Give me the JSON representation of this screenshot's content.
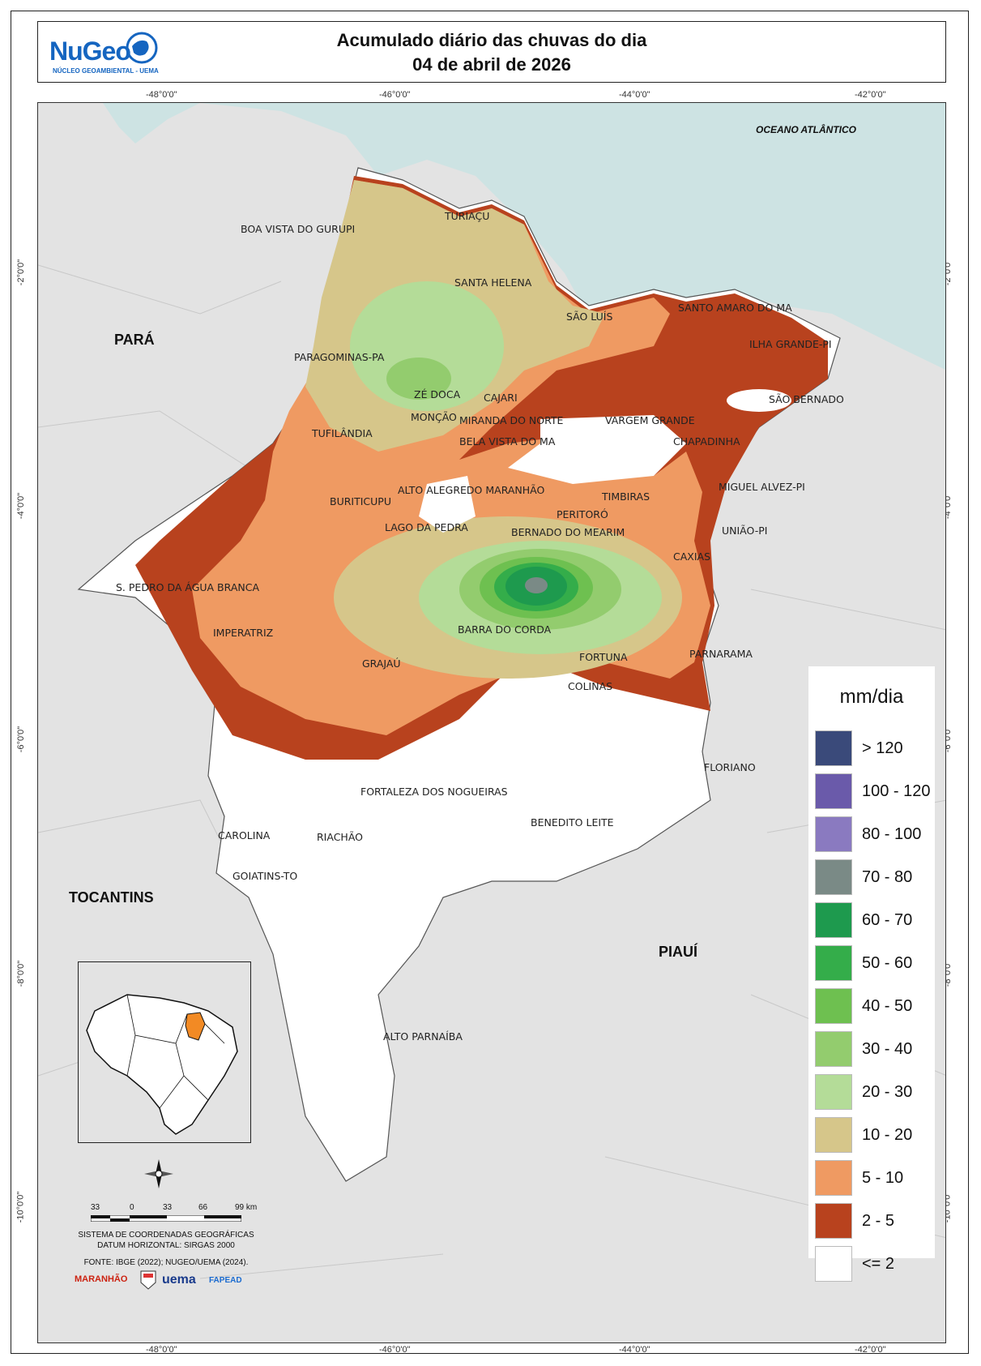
{
  "header": {
    "title_line1": "Acumulado diário das chuvas do dia",
    "title_line2": "04 de abril de 2026",
    "logo_text": "NuGeo",
    "logo_subtitle": "NÚCLEO GEOAMBIENTAL - UEMA"
  },
  "coords": {
    "top": [
      "-48°0'0\"",
      "-46°0'0\"",
      "-44°0'0\"",
      "-42°0'0\""
    ],
    "bottom": [
      "-48°0'0\"",
      "-46°0'0\"",
      "-44°0'0\"",
      "-42°0'0\""
    ],
    "left": [
      "-2°0'0\"",
      "-4°0'0\"",
      "-6°0'0\"",
      "-8°0'0\"",
      "-10°0'0\""
    ],
    "right": [
      "-2°0'0\"",
      "-4°0'0\"",
      "-6°0'0\"",
      "-8°0'0\"",
      "-10°0'0\""
    ]
  },
  "labels": {
    "ocean": "OCEANO ATLÂNTICO",
    "states": [
      "PARÁ",
      "TOCANTINS",
      "PIAUÍ"
    ]
  },
  "cities": [
    "BOA VISTA DO GURUPI",
    "TURIAÇU",
    "SANTA HELENA",
    "SÃO LUÍS",
    "SANTO AMARO DO MA",
    "ILHA GRANDE-PI",
    "PARAGOMINAS-PA",
    "ZÉ DOCA",
    "CAJARI",
    "MONÇÃO",
    "MIRANDA DO NORTE",
    "VARGEM GRANDE",
    "SÃO BERNADO",
    "TUFILÂNDIA",
    "BELA VISTA DO MA",
    "CHAPADINHA",
    "MIGUEL ALVEZ-PI",
    "ALTO ALEGREDO MARANHÃO",
    "TIMBIRAS",
    "BURITICUPU",
    "PERITORÓ",
    "LAGO DA PEDRA",
    "BERNADO DO MEARIM",
    "UNIÃO-PI",
    "CAXIAS",
    "S. PEDRO DA ÁGUA BRANCA",
    "BARRA DO CORDA",
    "IMPERATRIZ",
    "PARNARAMA",
    "FORTUNA",
    "GRAJAÚ",
    "COLINAS",
    "FLORIANO",
    "FORTALEZA DOS NOGUEIRAS",
    "BENEDITO LEITE",
    "CAROLINA",
    "RIACHÃO",
    "GOIATINS-TO",
    "ALTO PARNAÍBA"
  ],
  "legend": {
    "title": "mm/dia",
    "items": [
      {
        "label": "> 120",
        "color": "#3a4a7a"
      },
      {
        "label": "100 - 120",
        "color": "#6a5aaa"
      },
      {
        "label": "80 - 100",
        "color": "#8a7ac0"
      },
      {
        "label": "70 - 80",
        "color": "#7a8a86"
      },
      {
        "label": "60 - 70",
        "color": "#1e9a4e"
      },
      {
        "label": "50 - 60",
        "color": "#34ad4a"
      },
      {
        "label": "40 - 50",
        "color": "#6ec050"
      },
      {
        "label": "30 - 40",
        "color": "#93cc6e"
      },
      {
        "label": "20 - 30",
        "color": "#b4dc98"
      },
      {
        "label": "10 - 20",
        "color": "#d6c68a"
      },
      {
        "label": "5 - 10",
        "color": "#ef9a62"
      },
      {
        "label": "2 - 5",
        "color": "#b8421e"
      },
      {
        "label": "<= 2",
        "color": "#ffffff"
      }
    ]
  },
  "scale": {
    "ticks": [
      "33",
      "0",
      "33",
      "66",
      "99 km"
    ]
  },
  "footer": {
    "crs_line1": "SISTEMA DE COORDENADAS GEOGRÁFICAS",
    "crs_line2": "DATUM HORIZONTAL: SIRGAS 2000",
    "source": "FONTE: IBGE (2022); NUGEO/UEMA (2024).",
    "partners": [
      "MARANHÃO",
      "uema",
      "FAPEAD"
    ]
  },
  "colors": {
    "ocean": "#cde3e3",
    "land": "#e3e3e3",
    "state_highlight": "#f28a24"
  }
}
